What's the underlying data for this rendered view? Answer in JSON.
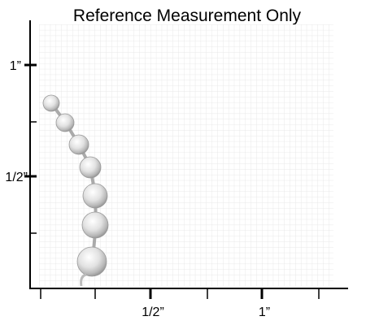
{
  "title": "Reference Measurement Only",
  "y_axis": {
    "labels": [
      "1”",
      "1/2”"
    ]
  },
  "x_axis": {
    "labels": [
      "1/2”",
      "1”"
    ]
  }
}
